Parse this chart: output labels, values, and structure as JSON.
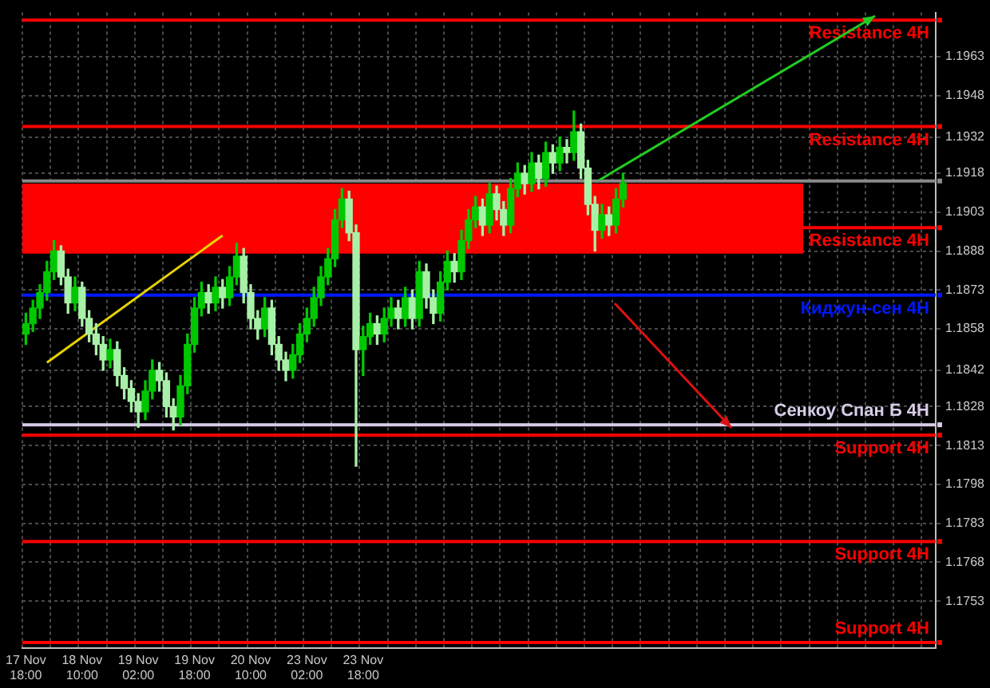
{
  "chart_data": {
    "type": "candlestick",
    "grid": true,
    "colors": [
      "#00c800",
      "#00c800",
      "#00c800",
      "#00c800",
      "#00c800",
      "#a8f0a8",
      "#a8f0a8",
      "#00c800",
      "#a8f0a8",
      "#a8f0a8",
      "#a8f0a8",
      "#a8f0a8",
      "#00c800",
      "#a8f0a8",
      "#a8f0a8",
      "#a8f0a8",
      "#a8f0a8",
      "#00c800",
      "#00c800",
      "#a8f0a8",
      "#a8f0a8",
      "#a8f0a8",
      "#00c800",
      "#00c800",
      "#00c800",
      "#00c800",
      "#a8f0a8",
      "#00c800",
      "#a8f0a8",
      "#00c800",
      "#00c800",
      "#a8f0a8",
      "#a8f0a8",
      "#a8f0a8",
      "#00c800",
      "#a8f0a8",
      "#a8f0a8",
      "#a8f0a8",
      "#00c800",
      "#00c800",
      "#00c800",
      "#00c800",
      "#00c800",
      "#00c800",
      "#00c800",
      "#00c800",
      "#a8f0a8",
      "#a8f0a8",
      "#00c800",
      "#00c800",
      "#a8f0a8",
      "#00c800",
      "#00c800",
      "#a8f0a8",
      "#00c800",
      "#a8f0a8",
      "#00c800",
      "#a8f0a8",
      "#a8f0a8",
      "#00c800",
      "#00c800",
      "#a8f0a8",
      "#00c800",
      "#00c800",
      "#00c800",
      "#a8f0a8",
      "#00c800",
      "#a8f0a8",
      "#a8f0a8",
      "#00c800",
      "#00c800",
      "#a8f0a8",
      "#00c800",
      "#a8f0a8",
      "#00c800",
      "#a8f0a8",
      "#00c800",
      "#a8f0a8",
      "#00c800",
      "#a8f0a8",
      "#a8f0a8",
      "#a8f0a8",
      "#00c800",
      "#a8f0a8",
      "#00c800",
      "#00c800",
      null,
      null,
      null,
      null,
      null,
      null,
      null,
      null,
      null,
      null,
      null,
      null,
      null,
      null,
      null,
      null,
      null,
      null,
      null,
      null,
      null,
      null,
      null,
      null,
      null,
      null,
      null,
      null,
      null,
      null,
      null,
      null,
      null,
      null,
      null,
      null,
      null,
      null,
      null,
      null,
      null,
      null,
      null,
      null
    ],
    "categories": [
      "17 Nov 18:00",
      null,
      null,
      null,
      null,
      null,
      null,
      null,
      "18 Nov 10:00",
      null,
      null,
      null,
      null,
      null,
      null,
      null,
      "19 Nov 02:00",
      null,
      null,
      null,
      null,
      null,
      null,
      null,
      "19 Nov 18:00",
      null,
      null,
      null,
      null,
      null,
      null,
      null,
      "20 Nov 10:00",
      null,
      null,
      null,
      null,
      null,
      null,
      null,
      "23 Nov 02:00",
      null,
      null,
      null,
      null,
      null,
      null,
      null,
      "23 Nov 18:00",
      null,
      null,
      null,
      null,
      null,
      null,
      null,
      null,
      null,
      null,
      null,
      null,
      null,
      null,
      null,
      null,
      null,
      null,
      null,
      null,
      null,
      null,
      null,
      null,
      null,
      null,
      null,
      null,
      null,
      null,
      null,
      null,
      null,
      null,
      null,
      null,
      null,
      null,
      null,
      null,
      null,
      null,
      null,
      null,
      null,
      null,
      null,
      null,
      null,
      null,
      null,
      null,
      null,
      null,
      null,
      null,
      null,
      null,
      null,
      null,
      null,
      null,
      null,
      null,
      null,
      null,
      null,
      null,
      null,
      null,
      null,
      null,
      null,
      null,
      null,
      null,
      null,
      null,
      null,
      null,
      null
    ],
    "ohlc": [
      [
        1.1856,
        1.1864,
        1.1852,
        1.186
      ],
      [
        1.186,
        1.1869,
        1.1857,
        1.1866
      ],
      [
        1.1866,
        1.1875,
        1.1862,
        1.1872
      ],
      [
        1.1872,
        1.1884,
        1.1869,
        1.188
      ],
      [
        1.188,
        1.1892,
        1.1877,
        1.1888
      ],
      [
        1.1888,
        1.189,
        1.1875,
        1.1878
      ],
      [
        1.1878,
        1.1881,
        1.1864,
        1.1868
      ],
      [
        1.1868,
        1.1878,
        1.1865,
        1.1874
      ],
      [
        1.1874,
        1.1876,
        1.1859,
        1.1862
      ],
      [
        1.1862,
        1.1865,
        1.1853,
        1.1856
      ],
      [
        1.1856,
        1.186,
        1.1848,
        1.1852
      ],
      [
        1.1852,
        1.1855,
        1.1842,
        1.1846
      ],
      [
        1.1846,
        1.1854,
        1.1843,
        1.185
      ],
      [
        1.185,
        1.1853,
        1.1836,
        1.184
      ],
      [
        1.184,
        1.1843,
        1.1831,
        1.1835
      ],
      [
        1.1835,
        1.1838,
        1.1826,
        1.183
      ],
      [
        1.183,
        1.1833,
        1.182,
        1.1826
      ],
      [
        1.1826,
        1.1838,
        1.1823,
        1.1834
      ],
      [
        1.1834,
        1.1846,
        1.1831,
        1.1842
      ],
      [
        1.1842,
        1.1845,
        1.1834,
        1.1838
      ],
      [
        1.1838,
        1.1841,
        1.1824,
        1.1828
      ],
      [
        1.1828,
        1.1831,
        1.1819,
        1.1824
      ],
      [
        1.1824,
        1.184,
        1.1821,
        1.1836
      ],
      [
        1.1836,
        1.1856,
        1.1833,
        1.1852
      ],
      [
        1.1852,
        1.187,
        1.1849,
        1.1866
      ],
      [
        1.1866,
        1.1876,
        1.1863,
        1.1872
      ],
      [
        1.1872,
        1.1875,
        1.1864,
        1.1868
      ],
      [
        1.1868,
        1.1878,
        1.1865,
        1.1874
      ],
      [
        1.1874,
        1.1877,
        1.1866,
        1.187
      ],
      [
        1.187,
        1.1882,
        1.1867,
        1.1878
      ],
      [
        1.1878,
        1.1891,
        1.1875,
        1.1886
      ],
      [
        1.1886,
        1.1889,
        1.1868,
        1.1872
      ],
      [
        1.1872,
        1.1875,
        1.1858,
        1.1862
      ],
      [
        1.1862,
        1.1865,
        1.1854,
        1.1858
      ],
      [
        1.1858,
        1.187,
        1.1855,
        1.1866
      ],
      [
        1.1866,
        1.1869,
        1.1848,
        1.1852
      ],
      [
        1.1852,
        1.1855,
        1.1842,
        1.1846
      ],
      [
        1.1846,
        1.1849,
        1.1838,
        1.1842
      ],
      [
        1.1842,
        1.1852,
        1.1839,
        1.1848
      ],
      [
        1.1848,
        1.186,
        1.1845,
        1.1856
      ],
      [
        1.1856,
        1.1866,
        1.1853,
        1.1862
      ],
      [
        1.1862,
        1.1874,
        1.1859,
        1.187
      ],
      [
        1.187,
        1.1882,
        1.1867,
        1.1878
      ],
      [
        1.1878,
        1.1889,
        1.1875,
        1.1885
      ],
      [
        1.1885,
        1.1904,
        1.1882,
        1.19
      ],
      [
        1.19,
        1.1912,
        1.1897,
        1.1908
      ],
      [
        1.1908,
        1.1911,
        1.1892,
        1.1895
      ],
      [
        1.1895,
        1.1898,
        1.1805,
        1.185
      ],
      [
        1.185,
        1.1859,
        1.184,
        1.1855
      ],
      [
        1.1855,
        1.1864,
        1.1852,
        1.186
      ],
      [
        1.186,
        1.1863,
        1.1852,
        1.1856
      ],
      [
        1.1856,
        1.1866,
        1.1853,
        1.1862
      ],
      [
        1.1862,
        1.187,
        1.1859,
        1.1866
      ],
      [
        1.1866,
        1.1869,
        1.1858,
        1.1862
      ],
      [
        1.1862,
        1.1874,
        1.1859,
        1.187
      ],
      [
        1.187,
        1.1873,
        1.1858,
        1.1862
      ],
      [
        1.1862,
        1.1884,
        1.1859,
        1.188
      ],
      [
        1.188,
        1.1883,
        1.1866,
        1.187
      ],
      [
        1.187,
        1.1873,
        1.186,
        1.1864
      ],
      [
        1.1864,
        1.188,
        1.1861,
        1.1876
      ],
      [
        1.1876,
        1.1888,
        1.1873,
        1.1884
      ],
      [
        1.1884,
        1.1887,
        1.1876,
        1.188
      ],
      [
        1.188,
        1.1896,
        1.1877,
        1.1892
      ],
      [
        1.1892,
        1.1904,
        1.1889,
        1.19
      ],
      [
        1.19,
        1.1909,
        1.1897,
        1.1905
      ],
      [
        1.1905,
        1.1908,
        1.1894,
        1.1898
      ],
      [
        1.1898,
        1.1914,
        1.1895,
        1.191
      ],
      [
        1.191,
        1.1913,
        1.19,
        1.1904
      ],
      [
        1.1904,
        1.1907,
        1.1894,
        1.1898
      ],
      [
        1.1898,
        1.1916,
        1.1895,
        1.1912
      ],
      [
        1.1912,
        1.1922,
        1.1909,
        1.1918
      ],
      [
        1.1918,
        1.1921,
        1.191,
        1.1914
      ],
      [
        1.1914,
        1.1926,
        1.1911,
        1.1922
      ],
      [
        1.1922,
        1.1925,
        1.1912,
        1.1916
      ],
      [
        1.1916,
        1.193,
        1.1913,
        1.1926
      ],
      [
        1.1926,
        1.1929,
        1.1918,
        1.1922
      ],
      [
        1.1922,
        1.1932,
        1.1919,
        1.1928
      ],
      [
        1.1928,
        1.1931,
        1.1922,
        1.1926
      ],
      [
        1.1926,
        1.1942,
        1.1923,
        1.1934
      ],
      [
        1.1934,
        1.1937,
        1.1916,
        1.192
      ],
      [
        1.192,
        1.1923,
        1.1902,
        1.1906
      ],
      [
        1.1906,
        1.1909,
        1.1888,
        1.1896
      ],
      [
        1.1896,
        1.1906,
        1.1893,
        1.1902
      ],
      [
        1.1902,
        1.1905,
        1.1894,
        1.1898
      ],
      [
        1.1898,
        1.1912,
        1.1895,
        1.1908
      ],
      [
        1.1908,
        1.1918,
        1.1905,
        1.1914
      ],
      null,
      null,
      null,
      null,
      null,
      null,
      null,
      null,
      null,
      null,
      null,
      null,
      null,
      null,
      null,
      null,
      null,
      null,
      null,
      null,
      null,
      null,
      null,
      null,
      null,
      null,
      null,
      null,
      null,
      null,
      null,
      null,
      null,
      null,
      null,
      null,
      null,
      null,
      null,
      null,
      null,
      null,
      null,
      null
    ],
    "series": [
      {
        "type": "line",
        "color": "#e6d200",
        "values": [
          null,
          null,
          null,
          1.1845,
          null,
          null,
          null,
          null,
          null,
          null,
          null,
          null,
          null,
          null,
          null,
          null,
          null,
          null,
          null,
          null,
          null,
          null,
          null,
          null,
          null,
          null,
          null,
          null,
          1.1894,
          null,
          null,
          null,
          null,
          null,
          null,
          null,
          null,
          null,
          null,
          null,
          null,
          null,
          null,
          null,
          null,
          null,
          null,
          null,
          null,
          null,
          null,
          null,
          null,
          null,
          null,
          null,
          null,
          null,
          null,
          null,
          null,
          null,
          null,
          null,
          null,
          null,
          null,
          null,
          null,
          null,
          null,
          null,
          null,
          null,
          null,
          null,
          null,
          null,
          null,
          null,
          null,
          null,
          null,
          null,
          null,
          null,
          null,
          null,
          null,
          null,
          null,
          null,
          null,
          null,
          null,
          null,
          null,
          null,
          null,
          null,
          null,
          null,
          null,
          null,
          null,
          null,
          null,
          null,
          null,
          null,
          null,
          null,
          null,
          null,
          null,
          null,
          null,
          null,
          null,
          null,
          null,
          null,
          null,
          null,
          null,
          null,
          null,
          null,
          null,
          null
        ]
      }
    ],
    "ylim": [
      1.1735,
      1.198
    ],
    "yticks": [
      1.1963,
      1.1948,
      1.1932,
      1.1918,
      1.1903,
      1.1888,
      1.1873,
      1.1858,
      1.1842,
      1.1828,
      1.1813,
      1.1798,
      1.1783,
      1.1768,
      1.1753
    ],
    "bands": [
      {
        "axis": "y",
        "from": 1.1887,
        "to": 1.1914,
        "color": "#ff0000"
      }
    ],
    "ref_lines": [
      {
        "axis": "y",
        "value": 1.1977,
        "label": "Resistance 4H",
        "color": "#ff0000"
      },
      {
        "axis": "y",
        "value": 1.1936,
        "label": "Resistance 4H",
        "color": "#ff0000"
      },
      {
        "axis": "y",
        "value": 1.1915,
        "color": "#8a8a8a"
      },
      {
        "axis": "y",
        "value": 1.1897,
        "label": "Resistance 4H",
        "color": "#ff0000"
      },
      {
        "axis": "y",
        "value": 1.1871,
        "label": "Киджун-сен 4H",
        "color": "#0018ff"
      },
      {
        "axis": "y",
        "value": 1.1821,
        "label": "Сенкоу Спан Б 4H",
        "color": "#d8cce8"
      },
      {
        "axis": "y",
        "value": 1.1817,
        "label": "Support 4H",
        "color": "#ff0000"
      },
      {
        "axis": "y",
        "value": 1.1776,
        "label": "Support 4H",
        "color": "#ff0000"
      },
      {
        "axis": "y",
        "value": 1.1737,
        "label": "Support 4H",
        "color": "#ff0000"
      }
    ]
  }
}
